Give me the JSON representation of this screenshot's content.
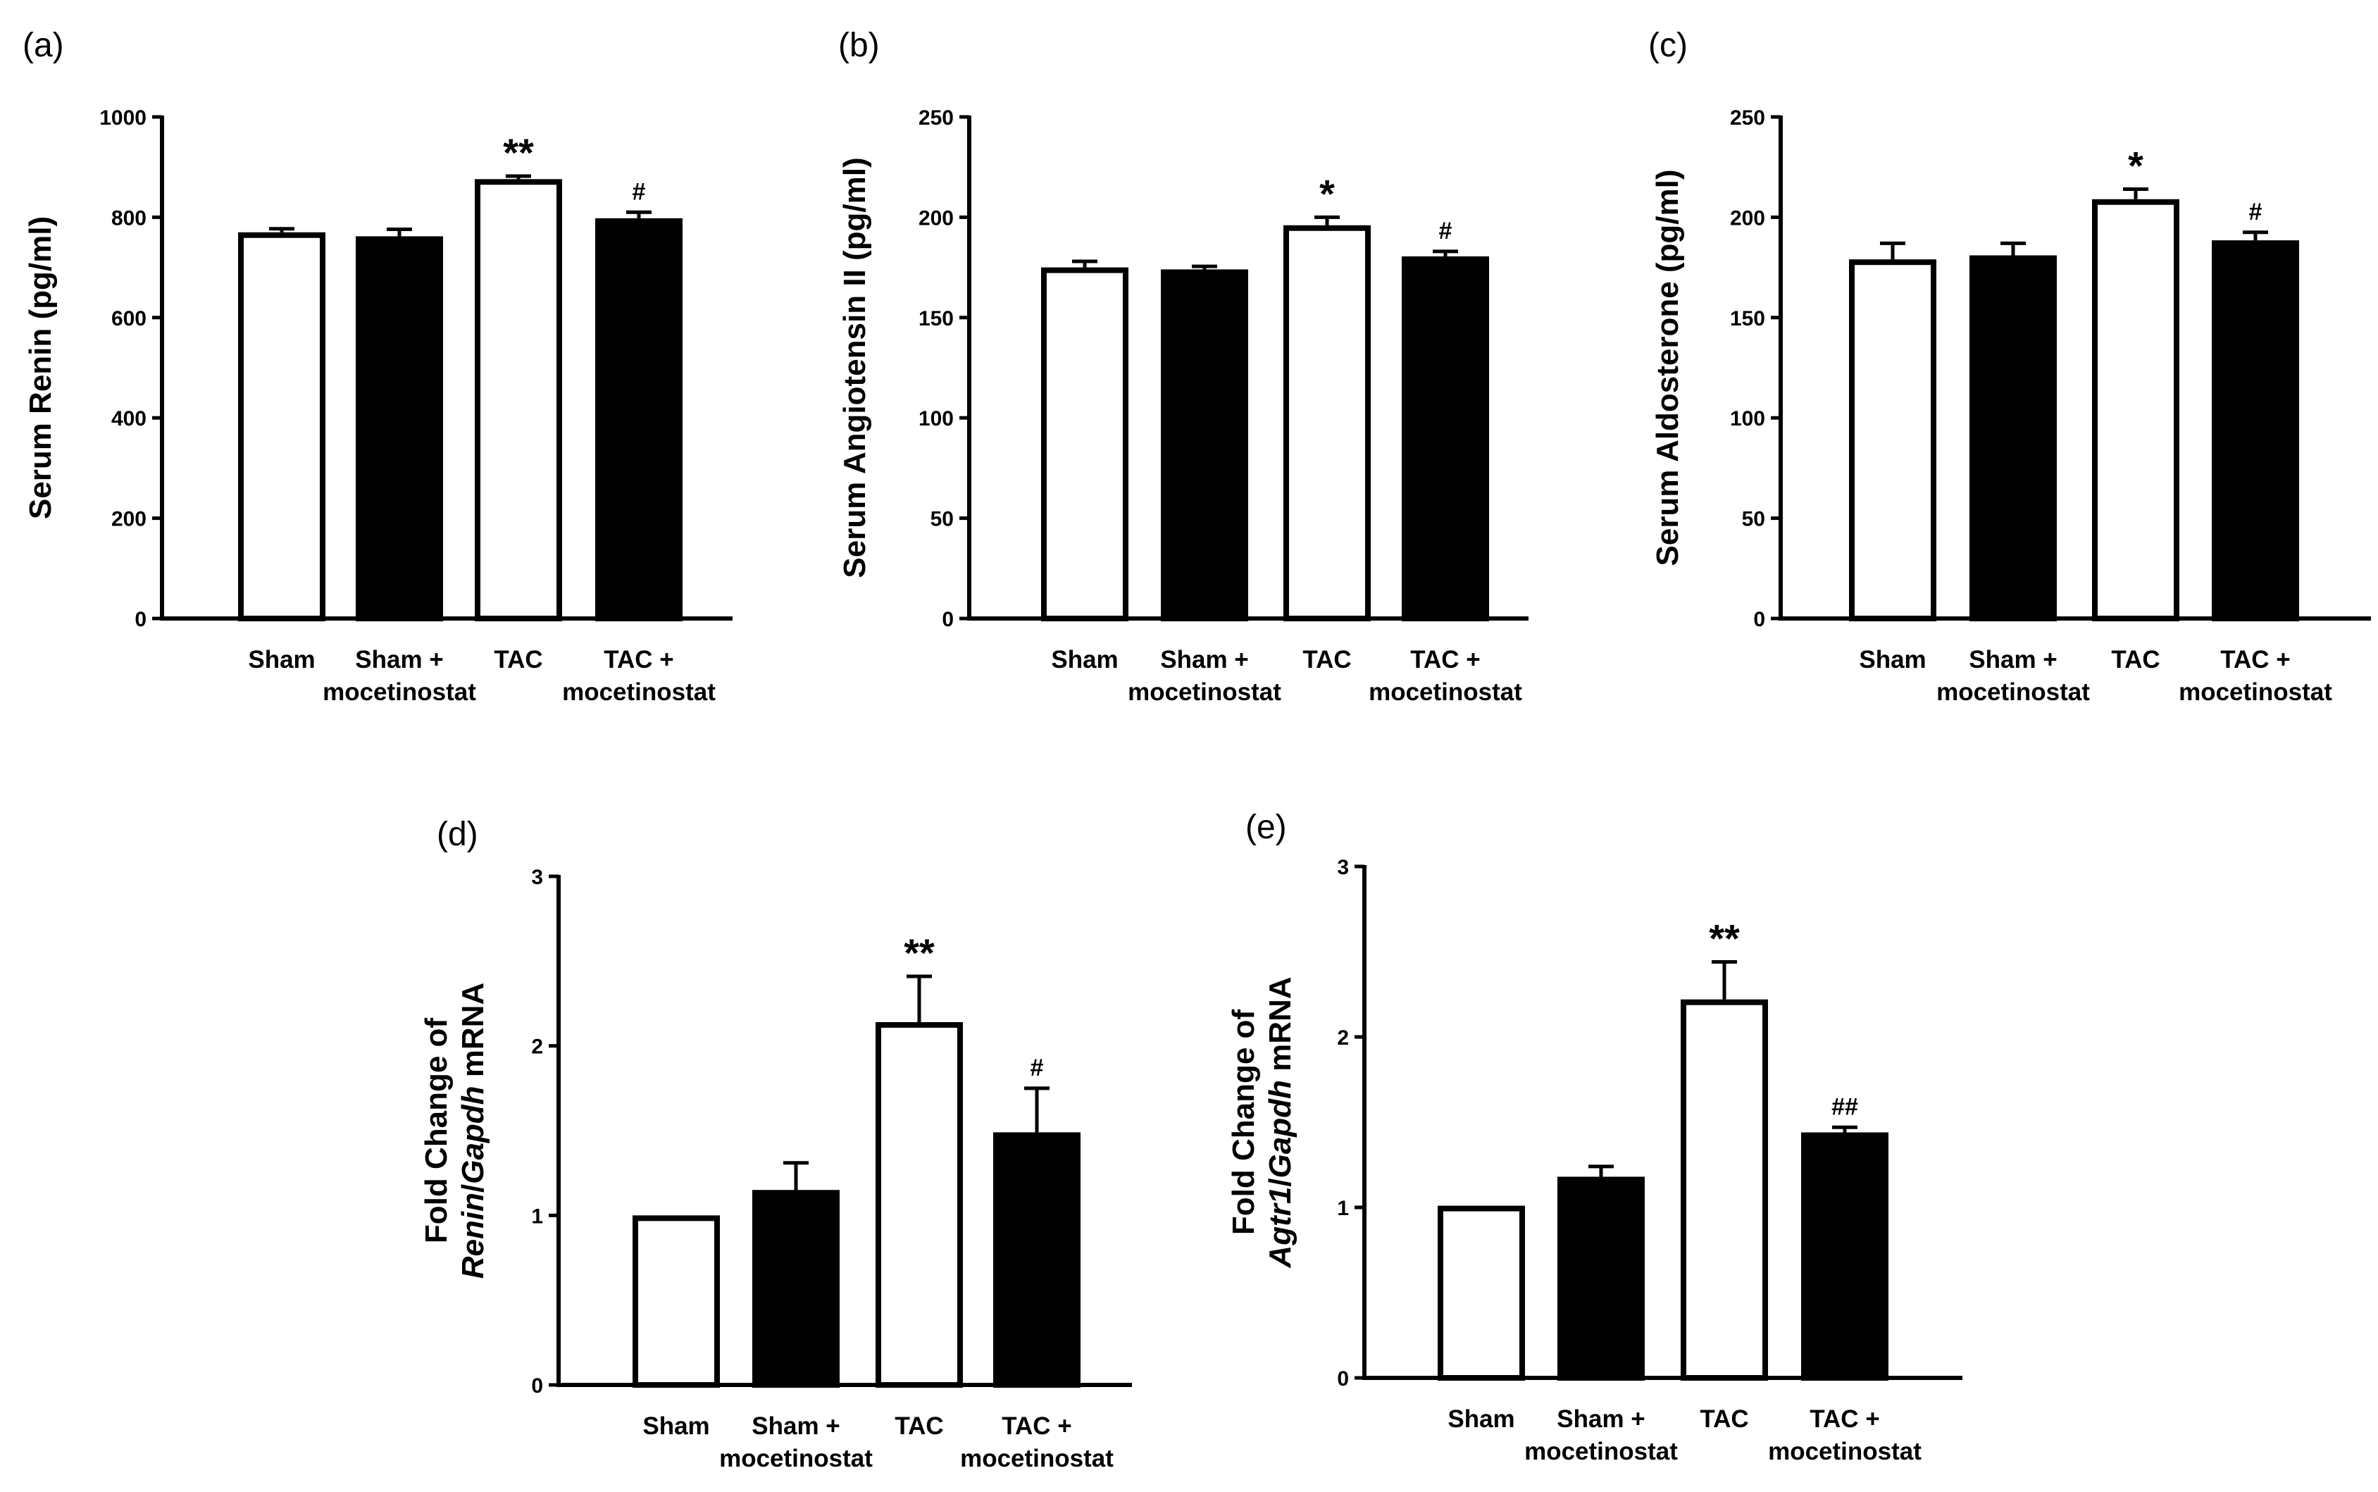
{
  "chart_data": [
    {
      "panel": "(a)",
      "type": "bar",
      "categories": [
        [
          "Sham"
        ],
        [
          "Sham +",
          "mocetinostat"
        ],
        [
          "TAC"
        ],
        [
          "TAC +",
          "mocetinostat"
        ]
      ],
      "values": [
        770,
        762,
        876,
        798
      ],
      "errors": [
        7,
        14,
        6,
        12
      ],
      "fills": [
        "#ffffff",
        "#000000",
        "#ffffff",
        "#000000"
      ],
      "annotations": [
        "",
        "",
        "**",
        "#"
      ],
      "ylabel": [
        "Serum Renin (pg/ml)"
      ],
      "ylim": [
        0,
        1000
      ],
      "yticks": [
        0,
        200,
        400,
        600,
        800,
        1000
      ]
    },
    {
      "panel": "(b)",
      "type": "bar",
      "categories": [
        [
          "Sham"
        ],
        [
          "Sham +",
          "mocetinostat"
        ],
        [
          "TAC"
        ],
        [
          "TAC +",
          "mocetinostat"
        ]
      ],
      "values": [
        175,
        174,
        196,
        180.5
      ],
      "errors": [
        3,
        1.5,
        4,
        2.5
      ],
      "fills": [
        "#ffffff",
        "#000000",
        "#ffffff",
        "#000000"
      ],
      "annotations": [
        "",
        "",
        "*",
        "#"
      ],
      "ylabel": [
        "Serum Angiotensin II (pg/ml)"
      ],
      "ylim": [
        0,
        250
      ],
      "yticks": [
        0,
        50,
        100,
        150,
        200,
        250
      ]
    },
    {
      "panel": "(c)",
      "type": "bar",
      "categories": [
        [
          "Sham"
        ],
        [
          "Sham +",
          "mocetinostat"
        ],
        [
          "TAC"
        ],
        [
          "TAC +",
          "mocetinostat"
        ]
      ],
      "values": [
        179,
        181,
        209,
        188.5
      ],
      "errors": [
        8,
        6,
        5,
        4
      ],
      "fills": [
        "#ffffff",
        "#000000",
        "#ffffff",
        "#000000"
      ],
      "annotations": [
        "",
        "",
        "*",
        "#"
      ],
      "ylabel": [
        "Serum Aldosterone (pg/ml)"
      ],
      "ylim": [
        0,
        250
      ],
      "yticks": [
        0,
        50,
        100,
        150,
        200,
        250
      ]
    },
    {
      "panel": "(d)",
      "type": "bar",
      "categories": [
        [
          "Sham"
        ],
        [
          "Sham +",
          "mocetinostat"
        ],
        [
          "TAC"
        ],
        [
          "TAC +",
          "mocetinostat"
        ]
      ],
      "values": [
        1.0,
        1.15,
        2.14,
        1.49
      ],
      "errors": [
        0,
        0.16,
        0.27,
        0.26
      ],
      "fills": [
        "#ffffff",
        "#000000",
        "#ffffff",
        "#000000"
      ],
      "annotations": [
        "",
        "",
        "**",
        "#"
      ],
      "ylabel": [
        "Fold Change of",
        "Renin/Gapdh mRNA"
      ],
      "ylim": [
        0,
        3
      ],
      "yticks": [
        0,
        1,
        2,
        3
      ]
    },
    {
      "panel": "(e)",
      "type": "bar",
      "categories": [
        [
          "Sham"
        ],
        [
          "Sham +",
          "mocetinostat"
        ],
        [
          "TAC"
        ],
        [
          "TAC +",
          "mocetinostat"
        ]
      ],
      "values": [
        1.01,
        1.18,
        2.22,
        1.44
      ],
      "errors": [
        0,
        0.06,
        0.22,
        0.03
      ],
      "fills": [
        "#ffffff",
        "#000000",
        "#ffffff",
        "#000000"
      ],
      "annotations": [
        "",
        "",
        "**",
        "##"
      ],
      "ylabel": [
        "Fold Change of",
        "Agtr1/Gapdh mRNA"
      ],
      "ylim": [
        0,
        3
      ],
      "yticks": [
        0,
        1,
        2,
        3
      ]
    }
  ]
}
